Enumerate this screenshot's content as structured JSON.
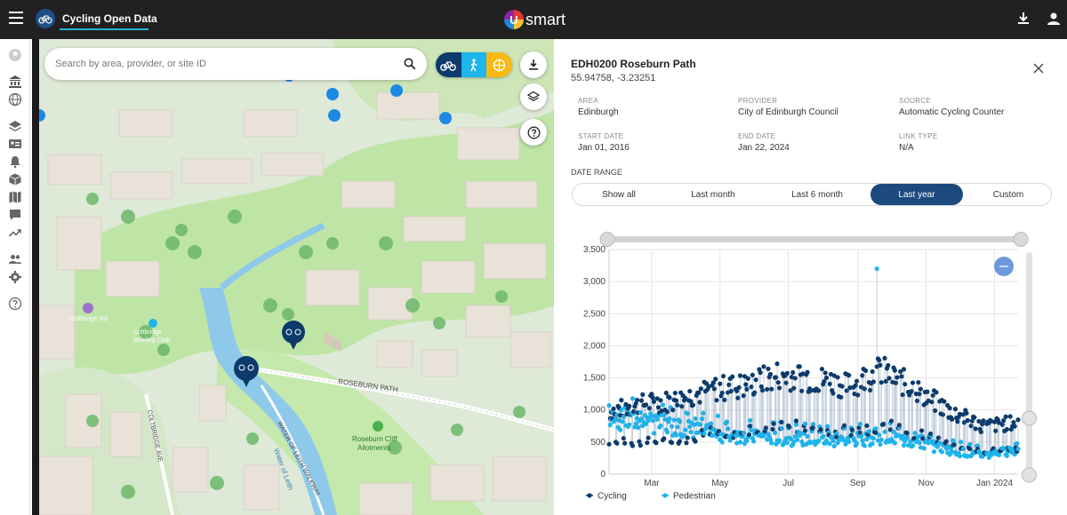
{
  "app": {
    "title": "Cycling Open Data",
    "brand": "smart",
    "brand_letter": "U"
  },
  "search": {
    "placeholder": "Search by area, provider, or site ID",
    "value": ""
  },
  "map": {
    "labels": [
      {
        "text": "ROSEBURN PATH"
      },
      {
        "text": "WATER OF LEITH WALKWAY"
      },
      {
        "text": "Water of Leith"
      },
      {
        "text": "COLTBRIDGE AVE"
      },
      {
        "text": "Roseburn Cliff"
      },
      {
        "text": "Allotments"
      },
      {
        "text": "Coltbridge Rd"
      },
      {
        "text": "Coltbridge"
      },
      {
        "text": "Bowling Club"
      }
    ]
  },
  "site": {
    "title": "EDH0200 Roseburn Path",
    "coords": "55.94758, -3.23251",
    "meta": [
      {
        "label": "AREA",
        "value": "Edinburgh"
      },
      {
        "label": "PROVIDER",
        "value": "City of Edinburgh Council"
      },
      {
        "label": "SOURCE",
        "value": "Automatic Cycling Counter"
      },
      {
        "label": "START DATE",
        "value": "Jan 01, 2016"
      },
      {
        "label": "END DATE",
        "value": "Jan 22, 2024"
      },
      {
        "label": "LINK TYPE",
        "value": "N/A"
      }
    ]
  },
  "date_range": {
    "label": "DATE RANGE",
    "options": [
      "Show all",
      "Last month",
      "Last 6 month",
      "Last year",
      "Custom"
    ],
    "selected": "Last year"
  },
  "colors": {
    "accent": "#1d4a7e",
    "cycling": "#0b3a6b",
    "pedestrian": "#1eb4ec",
    "mode_cycle": "#0b3a6b",
    "mode_walk": "#1eb4ec",
    "mode_other": "#f9b912"
  },
  "chart_data": {
    "type": "scatter",
    "x_ticks": [
      "Mar",
      "May",
      "Jul",
      "Sep",
      "Nov",
      "Jan 2024"
    ],
    "y_ticks": [
      "0",
      "500",
      "1,000",
      "1,500",
      "2,000",
      "2,500",
      "3,000",
      "3,500"
    ],
    "ylim": [
      0,
      3500
    ],
    "xlim": [
      "2023-01-22",
      "2024-01-22"
    ],
    "series": [
      {
        "name": "Cycling",
        "color": "#0b3a6b",
        "monthly_levels": [
          850,
          950,
          1000,
          1150,
          1200,
          1350,
          1300,
          1200,
          1400,
          1150,
          850,
          650,
          700
        ]
      },
      {
        "name": "Pedestrian",
        "color": "#1eb4ec",
        "monthly_levels": [
          950,
          900,
          820,
          700,
          650,
          620,
          600,
          580,
          640,
          560,
          420,
          320,
          430
        ],
        "peak": {
          "date": "2023-09-18",
          "value": 3200
        }
      }
    ]
  }
}
